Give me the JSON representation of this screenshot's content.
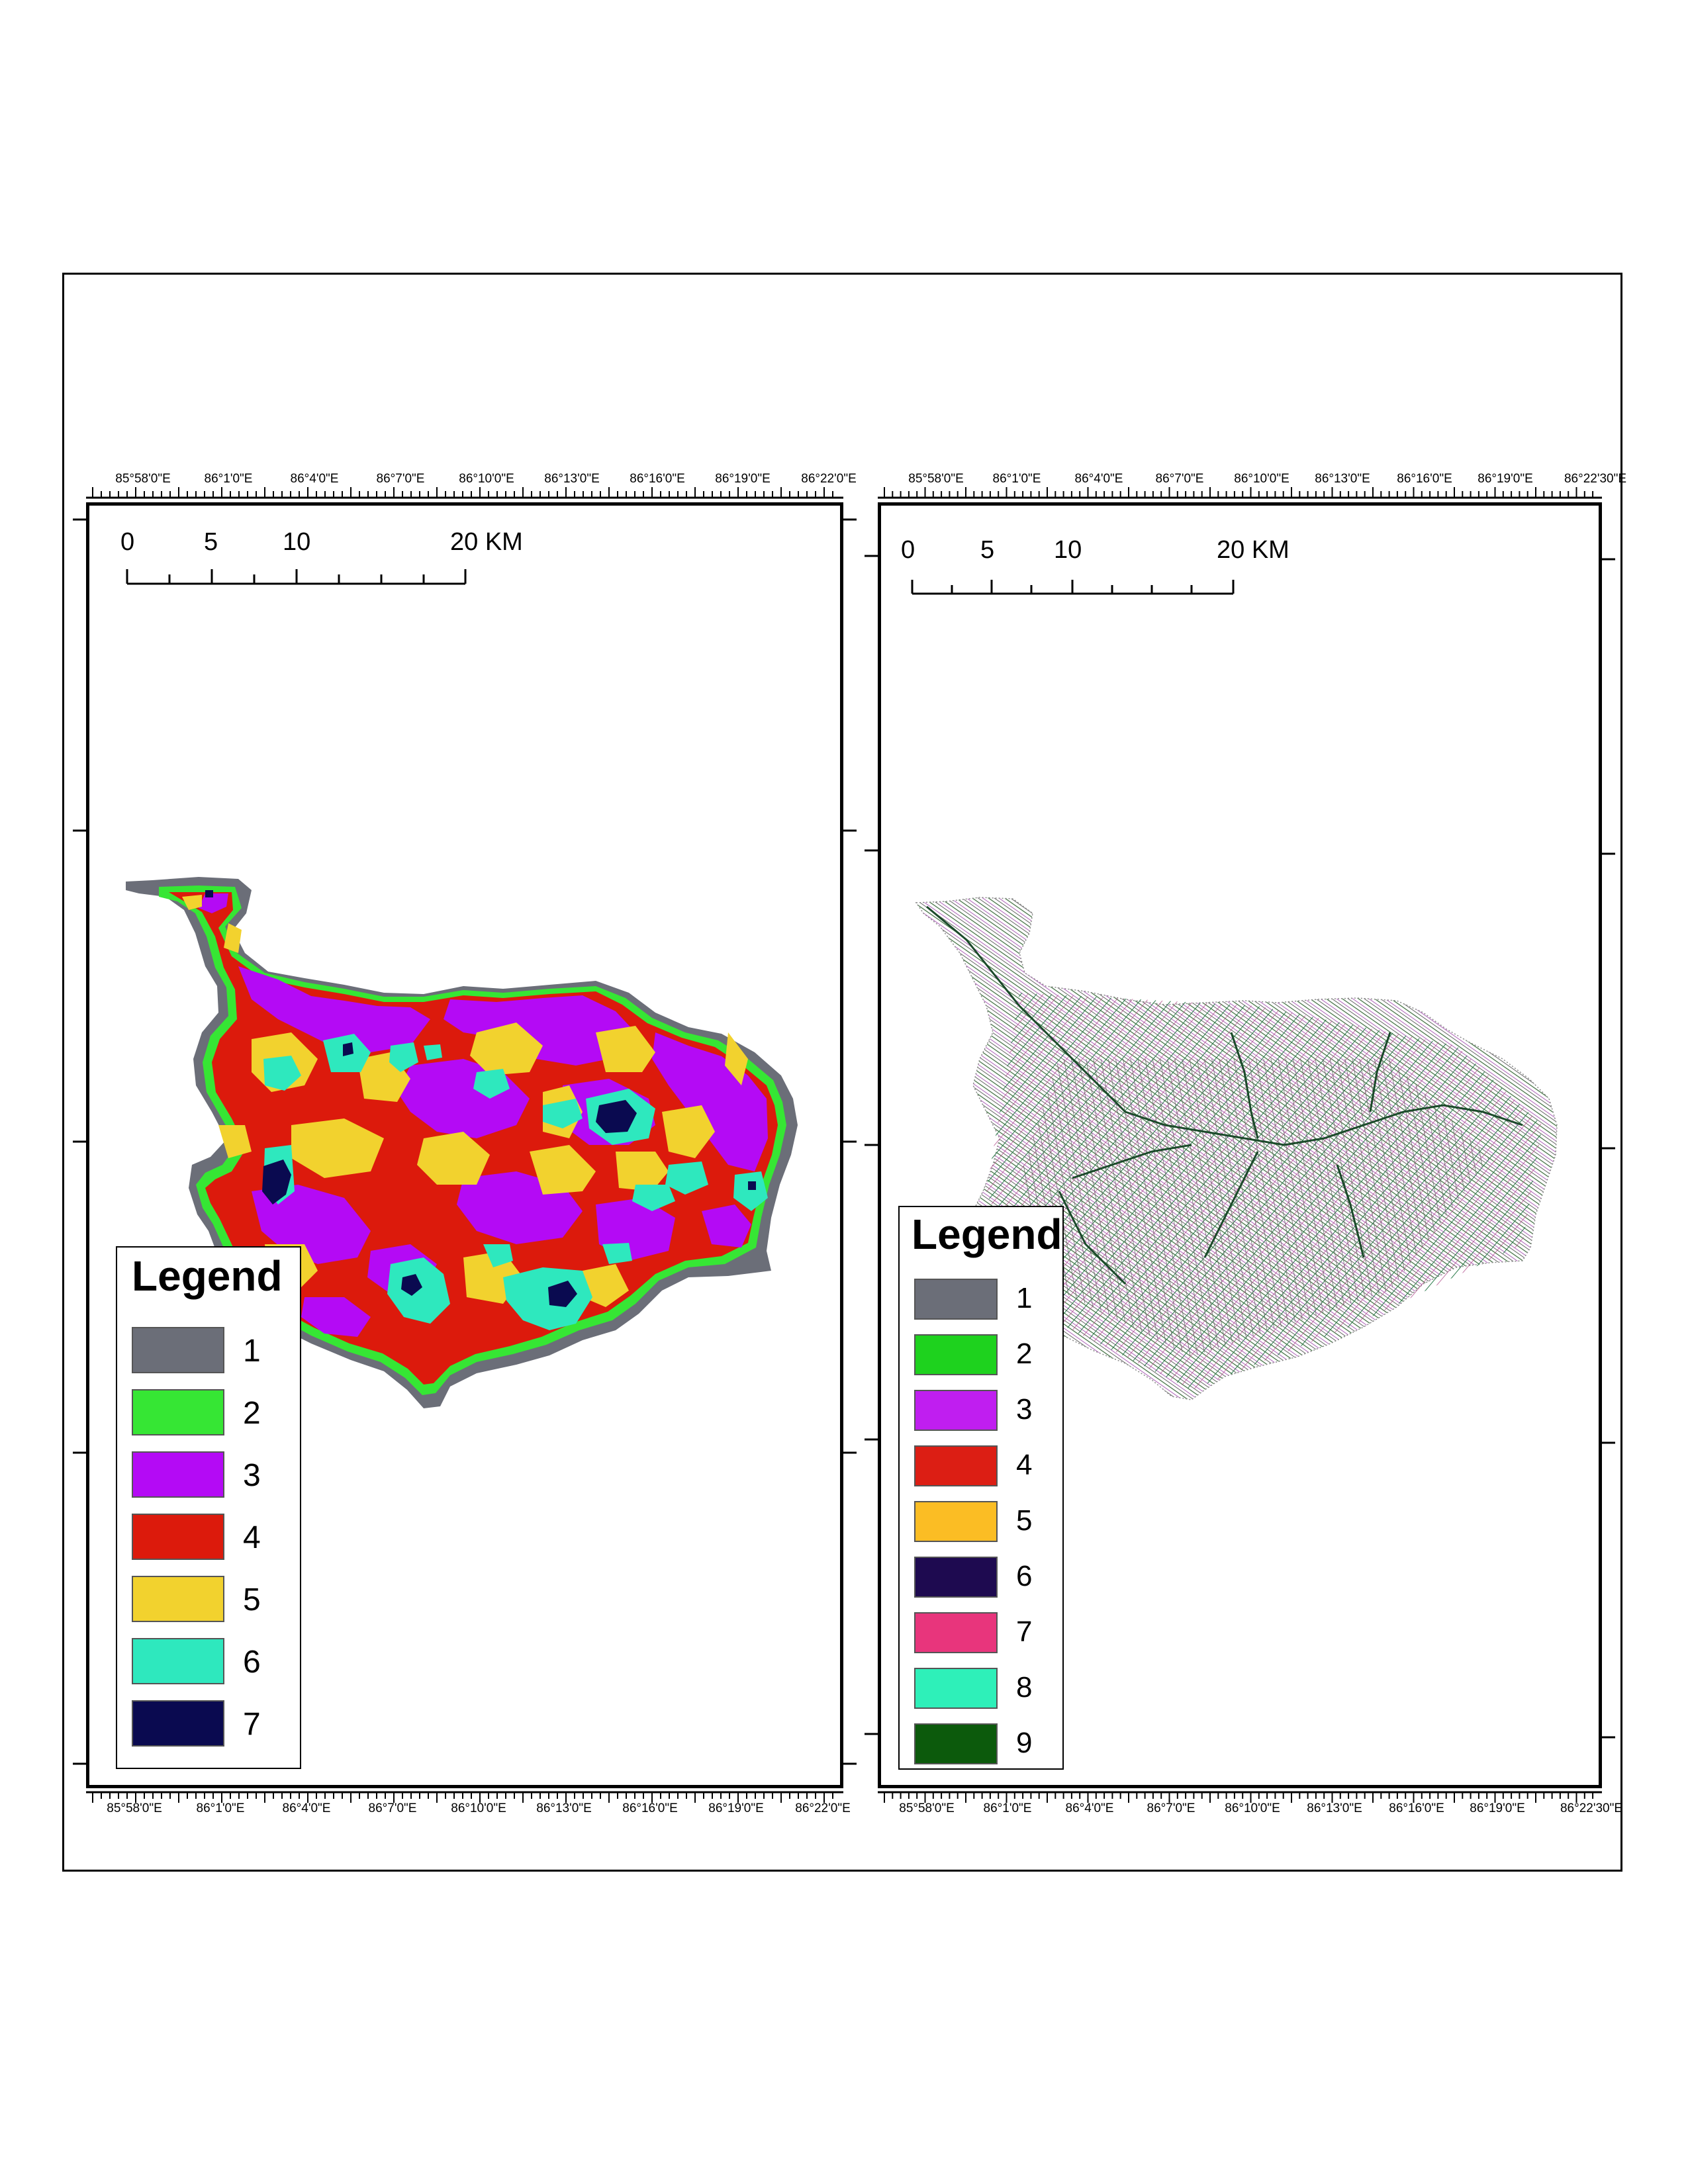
{
  "left_map": {
    "top_coords": [
      "85°58'0\"E",
      "86°1'0\"E",
      "86°4'0\"E",
      "86°7'0\"E",
      "86°10'0\"E",
      "86°13'0\"E",
      "86°16'0\"E",
      "86°19'0\"E",
      "86°22'0\"E"
    ],
    "bottom_coords": [
      "85°58'0\"E",
      "86°1'0\"E",
      "86°4'0\"E",
      "86°7'0\"E",
      "86°10'0\"E",
      "86°13'0\"E",
      "86°16'0\"E",
      "86°19'0\"E",
      "86°22'0\"E"
    ],
    "scale": {
      "l0": "0",
      "l5": "5",
      "l10": "10",
      "l20": "20 KM"
    },
    "legend": {
      "title": "Legend",
      "items": [
        {
          "label": "1",
          "color": "#6b6e78"
        },
        {
          "label": "2",
          "color": "#36e634"
        },
        {
          "label": "3",
          "color": "#b40af5"
        },
        {
          "label": "4",
          "color": "#dc1a0c"
        },
        {
          "label": "5",
          "color": "#f2d22e"
        },
        {
          "label": "6",
          "color": "#2ee8be"
        },
        {
          "label": "7",
          "color": "#0a0a50"
        }
      ]
    }
  },
  "right_map": {
    "top_coords": [
      "85°58'0\"E",
      "86°1'0\"E",
      "86°4'0\"E",
      "86°7'0\"E",
      "86°10'0\"E",
      "86°13'0\"E",
      "86°16'0\"E",
      "86°19'0\"E",
      "86°22'30\"E"
    ],
    "bottom_coords": [
      "85°58'0\"E",
      "86°1'0\"E",
      "86°4'0\"E",
      "86°7'0\"E",
      "86°10'0\"E",
      "86°13'0\"E",
      "86°16'0\"E",
      "86°19'0\"E",
      "86°22'30\"E"
    ],
    "scale": {
      "l0": "0",
      "l5": "5",
      "l10": "10",
      "l20": "20 KM"
    },
    "legend": {
      "title": "Legend",
      "items": [
        {
          "label": "1",
          "color": "#6b6e78"
        },
        {
          "label": "2",
          "color": "#1ed21e"
        },
        {
          "label": "3",
          "color": "#c01ef0"
        },
        {
          "label": "4",
          "color": "#dc1e14"
        },
        {
          "label": "5",
          "color": "#fbbd24"
        },
        {
          "label": "6",
          "color": "#1e0a50"
        },
        {
          "label": "7",
          "color": "#e8357c"
        },
        {
          "label": "8",
          "color": "#2ef0b9"
        },
        {
          "label": "9",
          "color": "#0c5a0c"
        }
      ]
    }
  }
}
